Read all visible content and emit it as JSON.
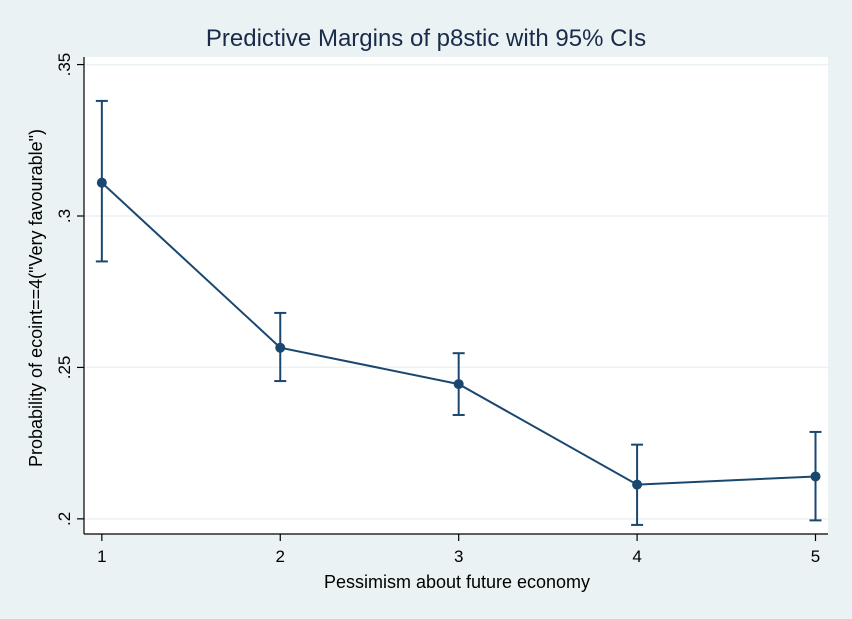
{
  "chart_data": {
    "type": "line",
    "title": "Predictive Margins of p8stic with 95% CIs",
    "xlabel": "Pessimism about future economy",
    "ylabel": "Probability of ecoint==4(\"Very favourable\")",
    "x": [
      1,
      2,
      3,
      4,
      5
    ],
    "series": [
      {
        "values": [
          0.311,
          0.2565,
          0.2445,
          0.2113,
          0.214
        ],
        "ci_lower": [
          0.285,
          0.2455,
          0.2343,
          0.198,
          0.1995
        ],
        "ci_upper": [
          0.338,
          0.268,
          0.2547,
          0.2245,
          0.2287
        ]
      }
    ],
    "xlim": [
      0.9,
      5.07
    ],
    "ylim": [
      0.195,
      0.3525
    ],
    "x_ticks": [
      "1",
      "2",
      "3",
      "4",
      "5"
    ],
    "y_ticks": [
      ".2",
      ".25",
      ".3",
      ".35"
    ],
    "y_tick_values": [
      0.2,
      0.25,
      0.3,
      0.35
    ],
    "grid": true,
    "colors": {
      "background": "#eaf2f3",
      "plot_background": "#ffffff",
      "series": "#1a476f",
      "grid": "#eaf2f3",
      "title": "#1a2b4a"
    }
  }
}
